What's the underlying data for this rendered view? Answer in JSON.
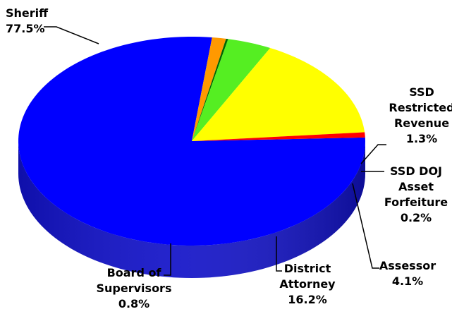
{
  "chart_data": {
    "type": "pie",
    "title": "",
    "style": "3d",
    "slices": [
      {
        "label": [
          "Sheriff"
        ],
        "value": 77.5,
        "value_label": "77.5%",
        "color": "#0000ff",
        "side_color": "#1111c8"
      },
      {
        "label": [
          "SSD",
          "Restricted",
          "Revenue"
        ],
        "value": 1.3,
        "value_label": "1.3%",
        "color": "#ff9900",
        "side_color": "#c27300"
      },
      {
        "label": [
          "SSD DOJ",
          "Asset",
          "Forfeiture"
        ],
        "value": 0.2,
        "value_label": "0.2%",
        "color": "#006600",
        "side_color": "#004a00"
      },
      {
        "label": [
          "Assessor"
        ],
        "value": 4.1,
        "value_label": "4.1%",
        "color": "#55ee22",
        "side_color": "#2e6c1a"
      },
      {
        "label": [
          "District",
          "Attorney"
        ],
        "value": 16.2,
        "value_label": "16.2%",
        "color": "#ffff00",
        "side_color": "#a4a400"
      },
      {
        "label": [
          "Board of",
          "Supervisors"
        ],
        "value": 0.8,
        "value_label": "0.8%",
        "color": "#ff0000",
        "side_color": "#c00000"
      }
    ]
  }
}
